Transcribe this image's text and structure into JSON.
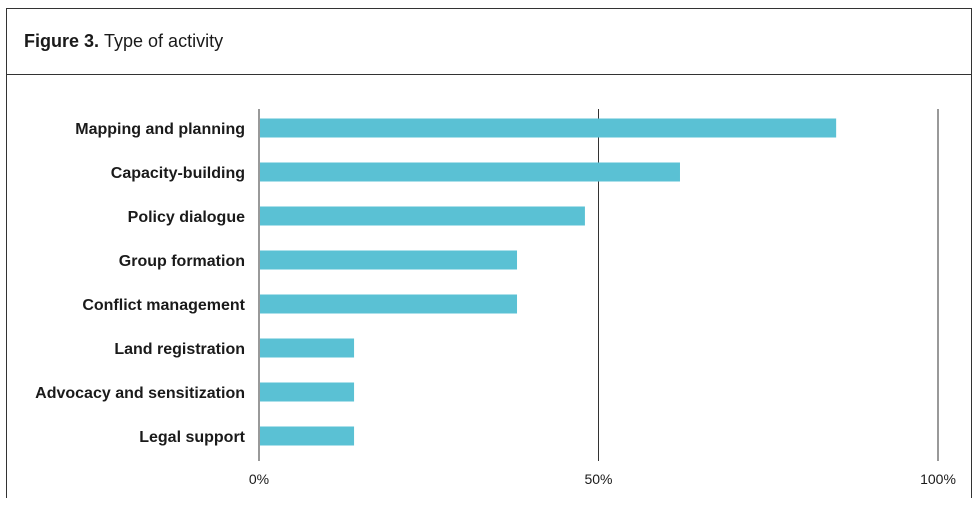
{
  "figure": {
    "number_label": "Figure 3.",
    "title": "Type of activity"
  },
  "chart_data": {
    "type": "bar",
    "orientation": "horizontal",
    "categories": [
      "Mapping and planning",
      "Capacity-building",
      "Policy dialogue",
      "Group formation",
      "Conflict management",
      "Land registration",
      "Advocacy and sensitization",
      "Legal support"
    ],
    "values": [
      85,
      62,
      48,
      38,
      38,
      14,
      14,
      14
    ],
    "unit": "%",
    "xlim": [
      0,
      100
    ],
    "x_ticks": [
      0,
      50,
      100
    ],
    "x_tick_labels": [
      "0%",
      "50%",
      "100%"
    ],
    "grid": true,
    "bar_color": "#5ac1d4",
    "legend": "none"
  }
}
